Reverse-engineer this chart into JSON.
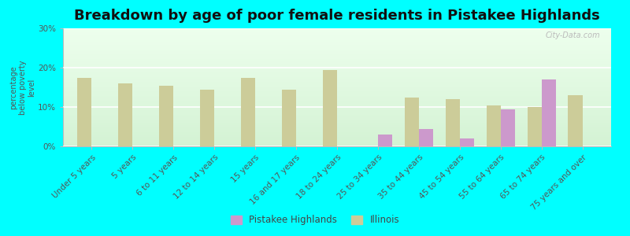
{
  "title": "Breakdown by age of poor female residents in Pistakee Highlands",
  "ylabel": "percentage\nbelow poverty\nlevel",
  "categories": [
    "Under 5 years",
    "5 years",
    "6 to 11 years",
    "12 to 14 years",
    "15 years",
    "16 and 17 years",
    "18 to 24 years",
    "25 to 34 years",
    "35 to 44 years",
    "45 to 54 years",
    "55 to 64 years",
    "65 to 74 years",
    "75 years and over"
  ],
  "pistakee_values": [
    null,
    null,
    null,
    null,
    null,
    null,
    null,
    3.0,
    4.5,
    2.0,
    9.5,
    17.0,
    null
  ],
  "illinois_values": [
    17.5,
    16.0,
    15.5,
    14.5,
    17.5,
    14.5,
    19.5,
    null,
    12.5,
    12.0,
    10.5,
    10.0,
    13.0
  ],
  "pistakee_color": "#cc99cc",
  "illinois_color": "#cccc99",
  "background_color": "#00ffff",
  "ylim": [
    0,
    30
  ],
  "yticks": [
    0,
    10,
    20,
    30
  ],
  "ytick_labels": [
    "0%",
    "10%",
    "20%",
    "30%"
  ],
  "bar_width": 0.35,
  "title_fontsize": 13,
  "tick_fontsize": 7.5,
  "legend_pistakee": "Pistakee Highlands",
  "legend_illinois": "Illinois"
}
